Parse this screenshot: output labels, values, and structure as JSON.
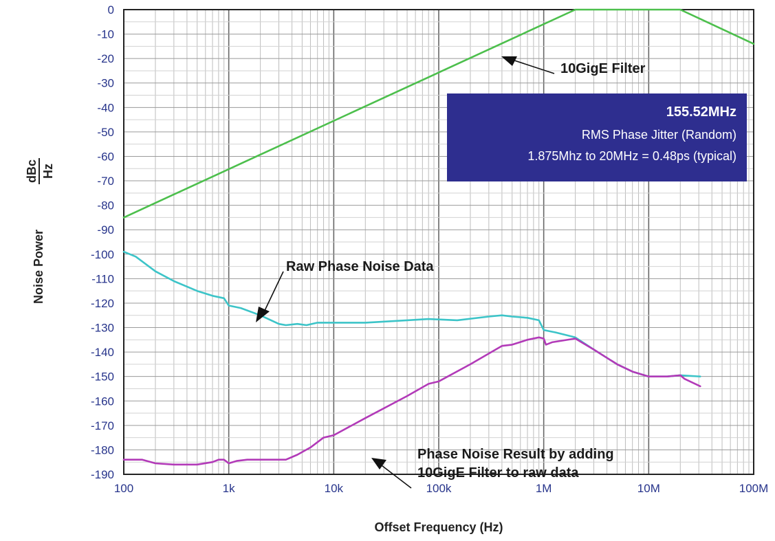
{
  "chart_data": {
    "type": "line",
    "xscale": "log",
    "xlim": [
      100,
      100000000
    ],
    "ylim": [
      -190,
      0
    ],
    "grid": true,
    "xlabel": "Offset Frequency (Hz)",
    "ylabel_main": "Noise Power",
    "ylabel_num": "dBc",
    "ylabel_den": "Hz",
    "xticks": [
      {
        "value": 100,
        "label": "100"
      },
      {
        "value": 1000,
        "label": "1k"
      },
      {
        "value": 10000,
        "label": "10k"
      },
      {
        "value": 100000,
        "label": "100k"
      },
      {
        "value": 1000000,
        "label": "1M"
      },
      {
        "value": 10000000,
        "label": "10M"
      },
      {
        "value": 100000000,
        "label": "100M"
      }
    ],
    "yticks": [
      "0",
      "-10",
      "-20",
      "-30",
      "-40",
      "-50",
      "-60",
      "-70",
      "-80",
      "-90",
      "-100",
      "-110",
      "-120",
      "-130",
      "-140",
      "-150",
      "-160",
      "-170",
      "-180",
      "-190"
    ],
    "series": [
      {
        "id": "filter",
        "color": "#4cbf4c",
        "points": [
          [
            100,
            -85
          ],
          [
            2000000,
            0
          ],
          [
            20000000,
            0
          ],
          [
            100000000,
            -14
          ]
        ]
      },
      {
        "id": "raw",
        "color": "#3cc4c8",
        "points": [
          [
            100,
            -99
          ],
          [
            130,
            -101
          ],
          [
            200,
            -107
          ],
          [
            300,
            -111
          ],
          [
            500,
            -115
          ],
          [
            700,
            -117
          ],
          [
            900,
            -118
          ],
          [
            1000,
            -121
          ],
          [
            1300,
            -122
          ],
          [
            2000,
            -125
          ],
          [
            3000,
            -128.5
          ],
          [
            3500,
            -129
          ],
          [
            4500,
            -128.5
          ],
          [
            5500,
            -129
          ],
          [
            7000,
            -128
          ],
          [
            10000,
            -128
          ],
          [
            20000,
            -128
          ],
          [
            50000,
            -127
          ],
          [
            80000,
            -126.5
          ],
          [
            150000,
            -127
          ],
          [
            300000,
            -125.5
          ],
          [
            400000,
            -125
          ],
          [
            500000,
            -125.5
          ],
          [
            700000,
            -126
          ],
          [
            900000,
            -127
          ],
          [
            1000000,
            -131
          ],
          [
            1300000,
            -132
          ],
          [
            2000000,
            -134
          ],
          [
            3000000,
            -139
          ],
          [
            5000000,
            -145
          ],
          [
            7000000,
            -148
          ],
          [
            10000000,
            -150
          ],
          [
            15000000,
            -150
          ],
          [
            20000000,
            -149.5
          ],
          [
            31000000,
            -150
          ]
        ]
      },
      {
        "id": "result",
        "color": "#b23ab8",
        "points": [
          [
            100,
            -184
          ],
          [
            150,
            -184
          ],
          [
            200,
            -185.5
          ],
          [
            300,
            -186
          ],
          [
            500,
            -186
          ],
          [
            700,
            -185
          ],
          [
            800,
            -184
          ],
          [
            900,
            -184
          ],
          [
            1000,
            -185.5
          ],
          [
            1200,
            -184.5
          ],
          [
            1500,
            -184
          ],
          [
            3500,
            -184
          ],
          [
            4500,
            -182
          ],
          [
            6000,
            -179
          ],
          [
            8000,
            -175
          ],
          [
            10000,
            -174
          ],
          [
            20000,
            -167
          ],
          [
            50000,
            -158
          ],
          [
            80000,
            -153
          ],
          [
            100000,
            -152
          ],
          [
            200000,
            -145
          ],
          [
            400000,
            -137.5
          ],
          [
            500000,
            -137
          ],
          [
            700000,
            -135
          ],
          [
            900000,
            -134
          ],
          [
            1000000,
            -134.5
          ],
          [
            1050000,
            -137
          ],
          [
            1200000,
            -136
          ],
          [
            2000000,
            -134.5
          ],
          [
            3000000,
            -139
          ],
          [
            5000000,
            -145
          ],
          [
            7000000,
            -148
          ],
          [
            10000000,
            -150
          ],
          [
            15000000,
            -150
          ],
          [
            20000000,
            -149.5
          ],
          [
            22000000,
            -151
          ],
          [
            31000000,
            -154
          ]
        ]
      }
    ],
    "annotations": [
      {
        "id": "filter",
        "text": "10GigE Filter"
      },
      {
        "id": "raw",
        "text": "Raw Phase Noise Data"
      },
      {
        "id": "result",
        "lines": [
          "Phase Noise Result by adding",
          "10GigE Filter to raw data"
        ]
      }
    ],
    "info_box": {
      "title": "155.52MHz",
      "lines": [
        "RMS Phase Jitter  (Random)",
        "1.875Mhz to 20MHz = 0.48ps (typical)"
      ],
      "fill": "#2e2e8f"
    }
  }
}
